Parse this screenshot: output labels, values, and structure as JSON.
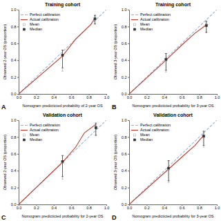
{
  "chart_data": [
    {
      "type": "line",
      "title": "Training cohort",
      "x_label": "Nomogram predicticted probability of 2-year OS",
      "y_label": "Observed 2-year OS (proportion)",
      "annotations": [
        "A"
      ],
      "xlim": [
        0,
        1
      ],
      "ylim": [
        0,
        1
      ],
      "xticks": [
        {
          "value": 0,
          "label": "0.0"
        },
        0.2,
        0.4,
        0.6,
        0.8,
        {
          "value": 1,
          "label": "1.0"
        }
      ],
      "yticks": [
        {
          "value": 0,
          "label": "0.0"
        },
        0.2,
        0.4,
        0.6,
        0.8,
        {
          "value": 1,
          "label": "1.0"
        }
      ],
      "grid": false,
      "legend": "upper left",
      "series": [
        {
          "name": "Perfect calibration",
          "type": "line",
          "line_style": "dashed",
          "color": "#9EB4D8",
          "x": [
            0,
            1
          ],
          "values": [
            0,
            1
          ]
        },
        {
          "name": "Actual calibration",
          "type": "line",
          "line_style": "solid",
          "color": "#C0392B",
          "x": [
            0.0,
            0.5,
            0.65,
            0.82,
            0.87
          ],
          "values": [
            0.0,
            0.45,
            0.65,
            0.82,
            0.9
          ]
        },
        {
          "name": "Mean",
          "type": "scatter",
          "marker": "open-square",
          "color": "#AAAAAA",
          "x": [
            0.5,
            0.87
          ],
          "values": [
            0.45,
            0.9
          ],
          "error_low": [
            0.18,
            0.07
          ],
          "error_high": [
            0.07,
            0.04
          ]
        },
        {
          "name": "Median",
          "type": "scatter",
          "marker": "square",
          "color": "#333333",
          "x": [
            0.5,
            0.87
          ],
          "values": [
            0.46,
            0.89
          ],
          "error_low": [
            0.15,
            0.06
          ],
          "error_high": [
            0.06,
            0.04
          ]
        }
      ]
    },
    {
      "type": "line",
      "title": "Training cohort",
      "x_label": "Nomogram predicticted probability for 3-year OS",
      "y_label": "Observed 3-year OS (proportion)",
      "annotations": [
        "B"
      ],
      "xlim": [
        0,
        1
      ],
      "ylim": [
        0,
        1
      ],
      "xticks": [
        {
          "value": 0,
          "label": "0.0"
        },
        0.2,
        0.4,
        0.6,
        0.8,
        {
          "value": 1,
          "label": "1.0"
        }
      ],
      "yticks": [
        {
          "value": 0,
          "label": "0.0"
        },
        0.2,
        0.4,
        0.6,
        0.8,
        {
          "value": 1,
          "label": "1.0"
        }
      ],
      "grid": false,
      "legend": "upper left",
      "series": [
        {
          "name": "Perfect calibration",
          "type": "line",
          "line_style": "dashed",
          "color": "#9EB4D8",
          "x": [
            0,
            1
          ],
          "values": [
            0,
            1
          ]
        },
        {
          "name": "Actual calibration",
          "type": "line",
          "line_style": "solid",
          "color": "#C0392B",
          "x": [
            0.0,
            0.42,
            0.6,
            0.75,
            0.88
          ],
          "values": [
            0.0,
            0.4,
            0.58,
            0.72,
            0.82
          ]
        },
        {
          "name": "Mean",
          "type": "scatter",
          "marker": "open-square",
          "color": "#AAAAAA",
          "x": [
            0.42,
            0.88
          ],
          "values": [
            0.4,
            0.82
          ],
          "error_low": [
            0.14,
            0.09
          ],
          "error_high": [
            0.08,
            0.05
          ]
        },
        {
          "name": "Median",
          "type": "scatter",
          "marker": "square",
          "color": "#333333",
          "x": [
            0.42,
            0.88
          ],
          "values": [
            0.41,
            0.81
          ],
          "error_low": [
            0.13,
            0.08
          ],
          "error_high": [
            0.07,
            0.05
          ]
        }
      ]
    },
    {
      "type": "line",
      "title": "Validation cohort",
      "x_label": "Nomogram predicticted probability for 2-year OS",
      "y_label": "Observed 2-year OS (proportion)",
      "annotations": [
        "C"
      ],
      "xlim": [
        0,
        1
      ],
      "ylim": [
        0,
        1
      ],
      "xticks": [
        {
          "value": 0,
          "label": "0.0"
        },
        0.2,
        0.4,
        0.6,
        0.8,
        {
          "value": 1,
          "label": "1.0"
        }
      ],
      "yticks": [
        {
          "value": 0,
          "label": "0.0"
        },
        0.2,
        0.4,
        0.6,
        0.8,
        {
          "value": 1,
          "label": "1.0"
        }
      ],
      "grid": false,
      "legend": "upper left",
      "series": [
        {
          "name": "Perfect calibration",
          "type": "line",
          "line_style": "dashed",
          "color": "#9EB4D8",
          "x": [
            0,
            1
          ],
          "values": [
            0,
            1
          ]
        },
        {
          "name": "Actual calibration",
          "type": "line",
          "line_style": "solid",
          "color": "#C0392B",
          "x": [
            0.0,
            0.5,
            0.65,
            0.75,
            0.88
          ],
          "values": [
            0.0,
            0.5,
            0.68,
            0.85,
            0.95
          ]
        },
        {
          "name": "Mean",
          "type": "scatter",
          "marker": "open-square",
          "color": "#AAAAAA",
          "x": [
            0.5,
            0.88
          ],
          "values": [
            0.5,
            0.92
          ],
          "error_low": [
            0.2,
            0.1
          ],
          "error_high": [
            0.08,
            0.05
          ]
        },
        {
          "name": "Median",
          "type": "scatter",
          "marker": "square",
          "color": "#333333",
          "x": [
            0.5,
            0.88
          ],
          "values": [
            0.51,
            0.91
          ],
          "error_low": [
            0.18,
            0.09
          ],
          "error_high": [
            0.07,
            0.05
          ]
        }
      ]
    },
    {
      "type": "line",
      "title": "Validation cohort",
      "x_label": "Nomogram predicticted probability for 3-year OS",
      "y_label": "Observed 3-year OS (proportion)",
      "annotations": [
        "D"
      ],
      "xlim": [
        0,
        1
      ],
      "ylim": [
        0,
        1
      ],
      "xticks": [
        {
          "value": 0,
          "label": "0.0"
        },
        0.2,
        0.4,
        0.6,
        0.8,
        {
          "value": 1,
          "label": "1.0"
        }
      ],
      "yticks": [
        {
          "value": 0,
          "label": "0.0"
        },
        0.2,
        0.4,
        0.6,
        0.8,
        {
          "value": 1,
          "label": "1.0"
        }
      ],
      "grid": false,
      "legend": "upper left",
      "series": [
        {
          "name": "Perfect calibration",
          "type": "line",
          "line_style": "dashed",
          "color": "#9EB4D8",
          "x": [
            0,
            1
          ],
          "values": [
            0,
            1
          ]
        },
        {
          "name": "Actual calibration",
          "type": "line",
          "line_style": "solid",
          "color": "#C0392B",
          "x": [
            0.0,
            0.45,
            0.62,
            0.75,
            0.85
          ],
          "values": [
            0.0,
            0.42,
            0.58,
            0.7,
            0.82
          ]
        },
        {
          "name": "Mean",
          "type": "scatter",
          "marker": "open-square",
          "color": "#AAAAAA",
          "x": [
            0.45,
            0.85
          ],
          "values": [
            0.42,
            0.8
          ],
          "error_low": [
            0.16,
            0.12
          ],
          "error_high": [
            0.1,
            0.06
          ]
        },
        {
          "name": "Median",
          "type": "scatter",
          "marker": "square",
          "color": "#333333",
          "x": [
            0.45,
            0.85
          ],
          "values": [
            0.43,
            0.81
          ],
          "error_low": [
            0.15,
            0.11
          ],
          "error_high": [
            0.09,
            0.06
          ]
        }
      ]
    }
  ]
}
